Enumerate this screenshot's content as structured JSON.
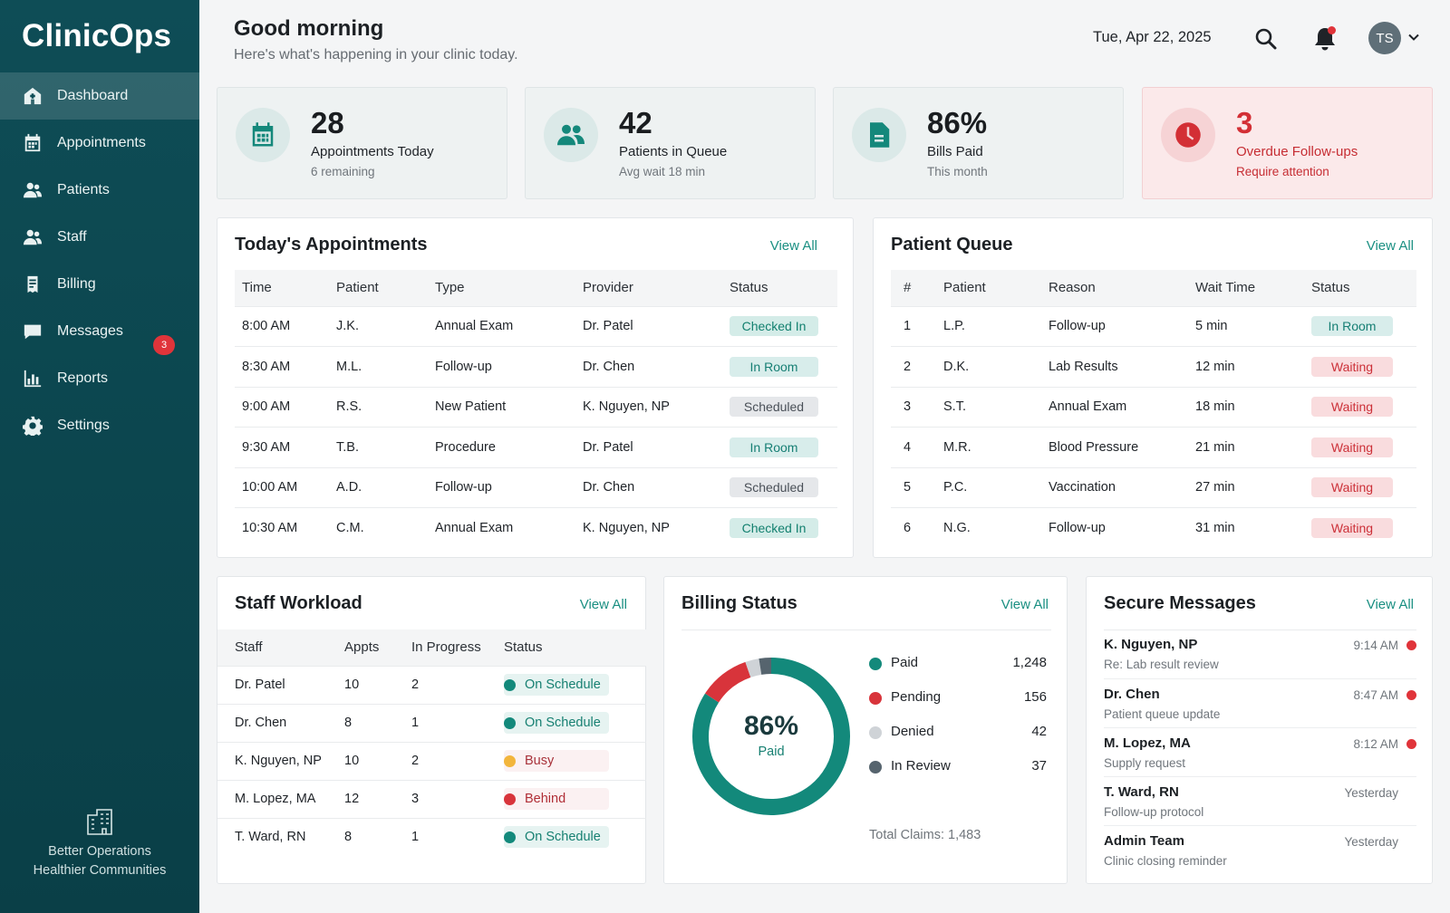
{
  "app": {
    "title": "ClinicOps"
  },
  "sidebar": {
    "items": [
      {
        "label": "Dashboard",
        "icon": "home-icon",
        "active": true
      },
      {
        "label": "Appointments",
        "icon": "calendar-icon"
      },
      {
        "label": "Patients",
        "icon": "users-icon"
      },
      {
        "label": "Staff",
        "icon": "staff-icon"
      },
      {
        "label": "Billing",
        "icon": "receipt-icon"
      },
      {
        "label": "Messages",
        "icon": "message-icon",
        "badge": "3"
      },
      {
        "label": "Reports",
        "icon": "chart-icon"
      },
      {
        "label": "Settings",
        "icon": "gear-icon"
      }
    ],
    "footer": {
      "line1": "Better Operations",
      "line2": "Healthier Communities",
      "icon": "building-icon"
    }
  },
  "header": {
    "greeting": "Good morning",
    "subtitle": "Here's what's happening in your clinic today.",
    "date": "Tue, Apr 22, 2025",
    "avatar_initials": "TS"
  },
  "kpis": [
    {
      "value": "28",
      "label": "Appointments Today",
      "sub": "6 remaining",
      "icon": "calendar-icon"
    },
    {
      "value": "42",
      "label": "Patients in Queue",
      "sub": "Avg wait 18 min",
      "icon": "users-icon"
    },
    {
      "value": "86%",
      "label": "Bills Paid",
      "sub": "This month",
      "icon": "document-icon"
    },
    {
      "value": "3",
      "label": "Overdue Follow-ups",
      "sub": "Require attention",
      "icon": "clock-icon",
      "alert": true
    }
  ],
  "appointments": {
    "title": "Today's Appointments",
    "view_all": "View All",
    "columns": [
      "Time",
      "Patient",
      "Type",
      "Provider",
      "Status"
    ],
    "rows": [
      {
        "time": "8:00 AM",
        "patient": "J.K.",
        "type": "Annual Exam",
        "provider": "Dr. Patel",
        "status": "Checked In"
      },
      {
        "time": "8:30 AM",
        "patient": "M.L.",
        "type": "Follow-up",
        "provider": "Dr. Chen",
        "status": "In Room"
      },
      {
        "time": "9:00 AM",
        "patient": "R.S.",
        "type": "New Patient",
        "provider": "K. Nguyen, NP",
        "status": "Scheduled"
      },
      {
        "time": "9:30 AM",
        "patient": "T.B.",
        "type": "Procedure",
        "provider": "Dr. Patel",
        "status": "In Room"
      },
      {
        "time": "10:00 AM",
        "patient": "A.D.",
        "type": "Follow-up",
        "provider": "Dr. Chen",
        "status": "Scheduled"
      },
      {
        "time": "10:30 AM",
        "patient": "C.M.",
        "type": "Annual Exam",
        "provider": "K. Nguyen, NP",
        "status": "Checked In"
      }
    ]
  },
  "queue": {
    "title": "Patient Queue",
    "view_all": "View All",
    "columns": [
      "#",
      "Patient",
      "Reason",
      "Wait Time",
      "Status"
    ],
    "rows": [
      {
        "n": "1",
        "patient": "L.P.",
        "reason": "Follow-up",
        "wait": "5 min",
        "status": "In Room"
      },
      {
        "n": "2",
        "patient": "D.K.",
        "reason": "Lab Results",
        "wait": "12 min",
        "status": "Waiting"
      },
      {
        "n": "3",
        "patient": "S.T.",
        "reason": "Annual Exam",
        "wait": "18 min",
        "status": "Waiting"
      },
      {
        "n": "4",
        "patient": "M.R.",
        "reason": "Blood Pressure",
        "wait": "21 min",
        "status": "Waiting"
      },
      {
        "n": "5",
        "patient": "P.C.",
        "reason": "Vaccination",
        "wait": "27 min",
        "status": "Waiting"
      },
      {
        "n": "6",
        "patient": "N.G.",
        "reason": "Follow-up",
        "wait": "31 min",
        "status": "Waiting"
      }
    ]
  },
  "staff": {
    "title": "Staff Workload",
    "view_all": "View All",
    "columns": [
      "Staff",
      "Appts",
      "In Progress",
      "Status"
    ],
    "rows": [
      {
        "name": "Dr. Patel",
        "appts": "10",
        "progress": "2",
        "status": "On Schedule",
        "color": "#13897b"
      },
      {
        "name": "Dr. Chen",
        "appts": "8",
        "progress": "1",
        "status": "On Schedule",
        "color": "#13897b"
      },
      {
        "name": "K. Nguyen, NP",
        "appts": "10",
        "progress": "2",
        "status": "Busy",
        "color": "#f2b53c"
      },
      {
        "name": "M. Lopez, MA",
        "appts": "12",
        "progress": "3",
        "status": "Behind",
        "color": "#d8343b"
      },
      {
        "name": "T. Ward, RN",
        "appts": "8",
        "progress": "1",
        "status": "On Schedule",
        "color": "#13897b"
      }
    ]
  },
  "billing": {
    "title": "Billing Status",
    "view_all": "View All",
    "center_value": "86%",
    "center_label": "Paid",
    "total": "Total Claims: 1,483",
    "chart_data": {
      "type": "pie",
      "categories": [
        "Paid",
        "Pending",
        "Denied",
        "In Review"
      ],
      "values": [
        1248,
        156,
        42,
        37
      ],
      "colors": [
        "#13897b",
        "#d8343b",
        "#cfd3d7",
        "#56646e"
      ],
      "legend": "right"
    }
  },
  "messages": {
    "title": "Secure Messages",
    "view_all": "View All",
    "items": [
      {
        "from": "K. Nguyen, NP",
        "subject": "Re: Lab result review",
        "time": "9:14 AM",
        "unread": true
      },
      {
        "from": "Dr. Chen",
        "subject": "Patient queue update",
        "time": "8:47 AM",
        "unread": true
      },
      {
        "from": "M. Lopez, MA",
        "subject": "Supply request",
        "time": "8:12 AM",
        "unread": true
      },
      {
        "from": "T. Ward, RN",
        "subject": "Follow-up protocol",
        "time": "Yesterday",
        "unread": false
      },
      {
        "from": "Admin Team",
        "subject": "Clinic closing reminder",
        "time": "Yesterday",
        "unread": false
      }
    ]
  }
}
